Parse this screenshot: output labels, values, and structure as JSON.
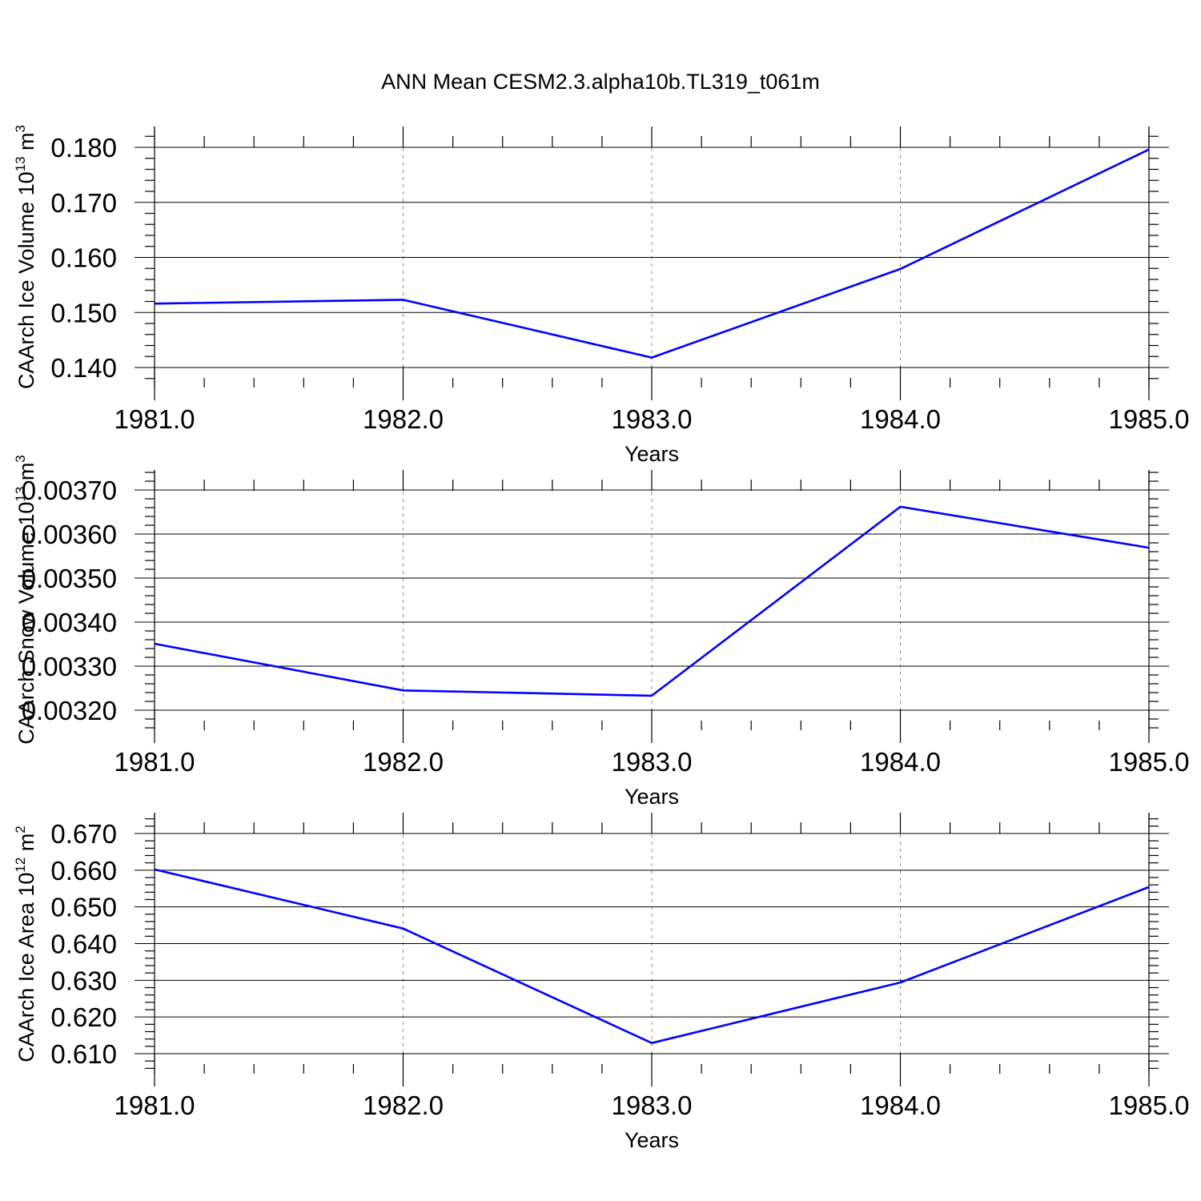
{
  "figure": {
    "title": "ANN Mean CESM2.3.alpha10b.TL319_t061m"
  },
  "colors": {
    "line": "#0000ff",
    "axis": "#000000",
    "grid": "#8c8c8c",
    "background": "#ffffff"
  },
  "chart_data": [
    {
      "type": "line",
      "xlabel": "Years",
      "ylabel": "CAArch Ice Volume 10",
      "ylabel_sup": "13",
      "ylabel_unit": " m",
      "ylabel_unit_sup": "3",
      "x": [
        1981.0,
        1982.0,
        1983.0,
        1984.0,
        1985.0
      ],
      "y": [
        0.1516,
        0.1523,
        0.1418,
        0.1579,
        0.1796
      ],
      "xlim": [
        1981.0,
        1985.0
      ],
      "ylim": [
        0.14,
        0.18
      ],
      "xticks": [
        1981.0,
        1982.0,
        1983.0,
        1984.0,
        1985.0
      ],
      "xtick_labels": [
        "1981.0",
        "1982.0",
        "1983.0",
        "1984.0",
        "1985.0"
      ],
      "yticks": [
        0.14,
        0.15,
        0.16,
        0.17,
        0.18
      ],
      "ytick_labels": [
        "0.140",
        "0.150",
        "0.160",
        "0.170",
        "0.180"
      ],
      "grid": "vertical dashed at major x ticks"
    },
    {
      "type": "line",
      "xlabel": "Years",
      "ylabel": "CAArch Snow Volume 10",
      "ylabel_sup": "13",
      "ylabel_unit": " m",
      "ylabel_unit_sup": "3",
      "x": [
        1981.0,
        1982.0,
        1983.0,
        1984.0,
        1985.0
      ],
      "y": [
        0.003351,
        0.003245,
        0.003233,
        0.003662,
        0.003569
      ],
      "xlim": [
        1981.0,
        1985.0
      ],
      "ylim": [
        0.0032,
        0.0037
      ],
      "xticks": [
        1981.0,
        1982.0,
        1983.0,
        1984.0,
        1985.0
      ],
      "xtick_labels": [
        "1981.0",
        "1982.0",
        "1983.0",
        "1984.0",
        "1985.0"
      ],
      "yticks": [
        0.0032,
        0.0033,
        0.0034,
        0.0035,
        0.0036,
        0.0037
      ],
      "ytick_labels": [
        "0.00320",
        "0.00330",
        "0.00340",
        "0.00350",
        "0.00360",
        "0.00370"
      ],
      "grid": "vertical dashed at major x ticks"
    },
    {
      "type": "line",
      "xlabel": "Years",
      "ylabel": "CAArch Ice Area 10",
      "ylabel_sup": "12",
      "ylabel_unit": " m",
      "ylabel_unit_sup": "2",
      "x": [
        1981.0,
        1982.0,
        1983.0,
        1984.0,
        1985.0
      ],
      "y": [
        0.6602,
        0.6441,
        0.6129,
        0.6294,
        0.6554
      ],
      "xlim": [
        1981.0,
        1985.0
      ],
      "ylim": [
        0.61,
        0.67
      ],
      "xticks": [
        1981.0,
        1982.0,
        1983.0,
        1984.0,
        1985.0
      ],
      "xtick_labels": [
        "1981.0",
        "1982.0",
        "1983.0",
        "1984.0",
        "1985.0"
      ],
      "yticks": [
        0.61,
        0.62,
        0.63,
        0.64,
        0.65,
        0.66,
        0.67
      ],
      "ytick_labels": [
        "0.610",
        "0.620",
        "0.630",
        "0.640",
        "0.650",
        "0.660",
        "0.670"
      ],
      "grid": "vertical dashed at major x ticks"
    }
  ]
}
